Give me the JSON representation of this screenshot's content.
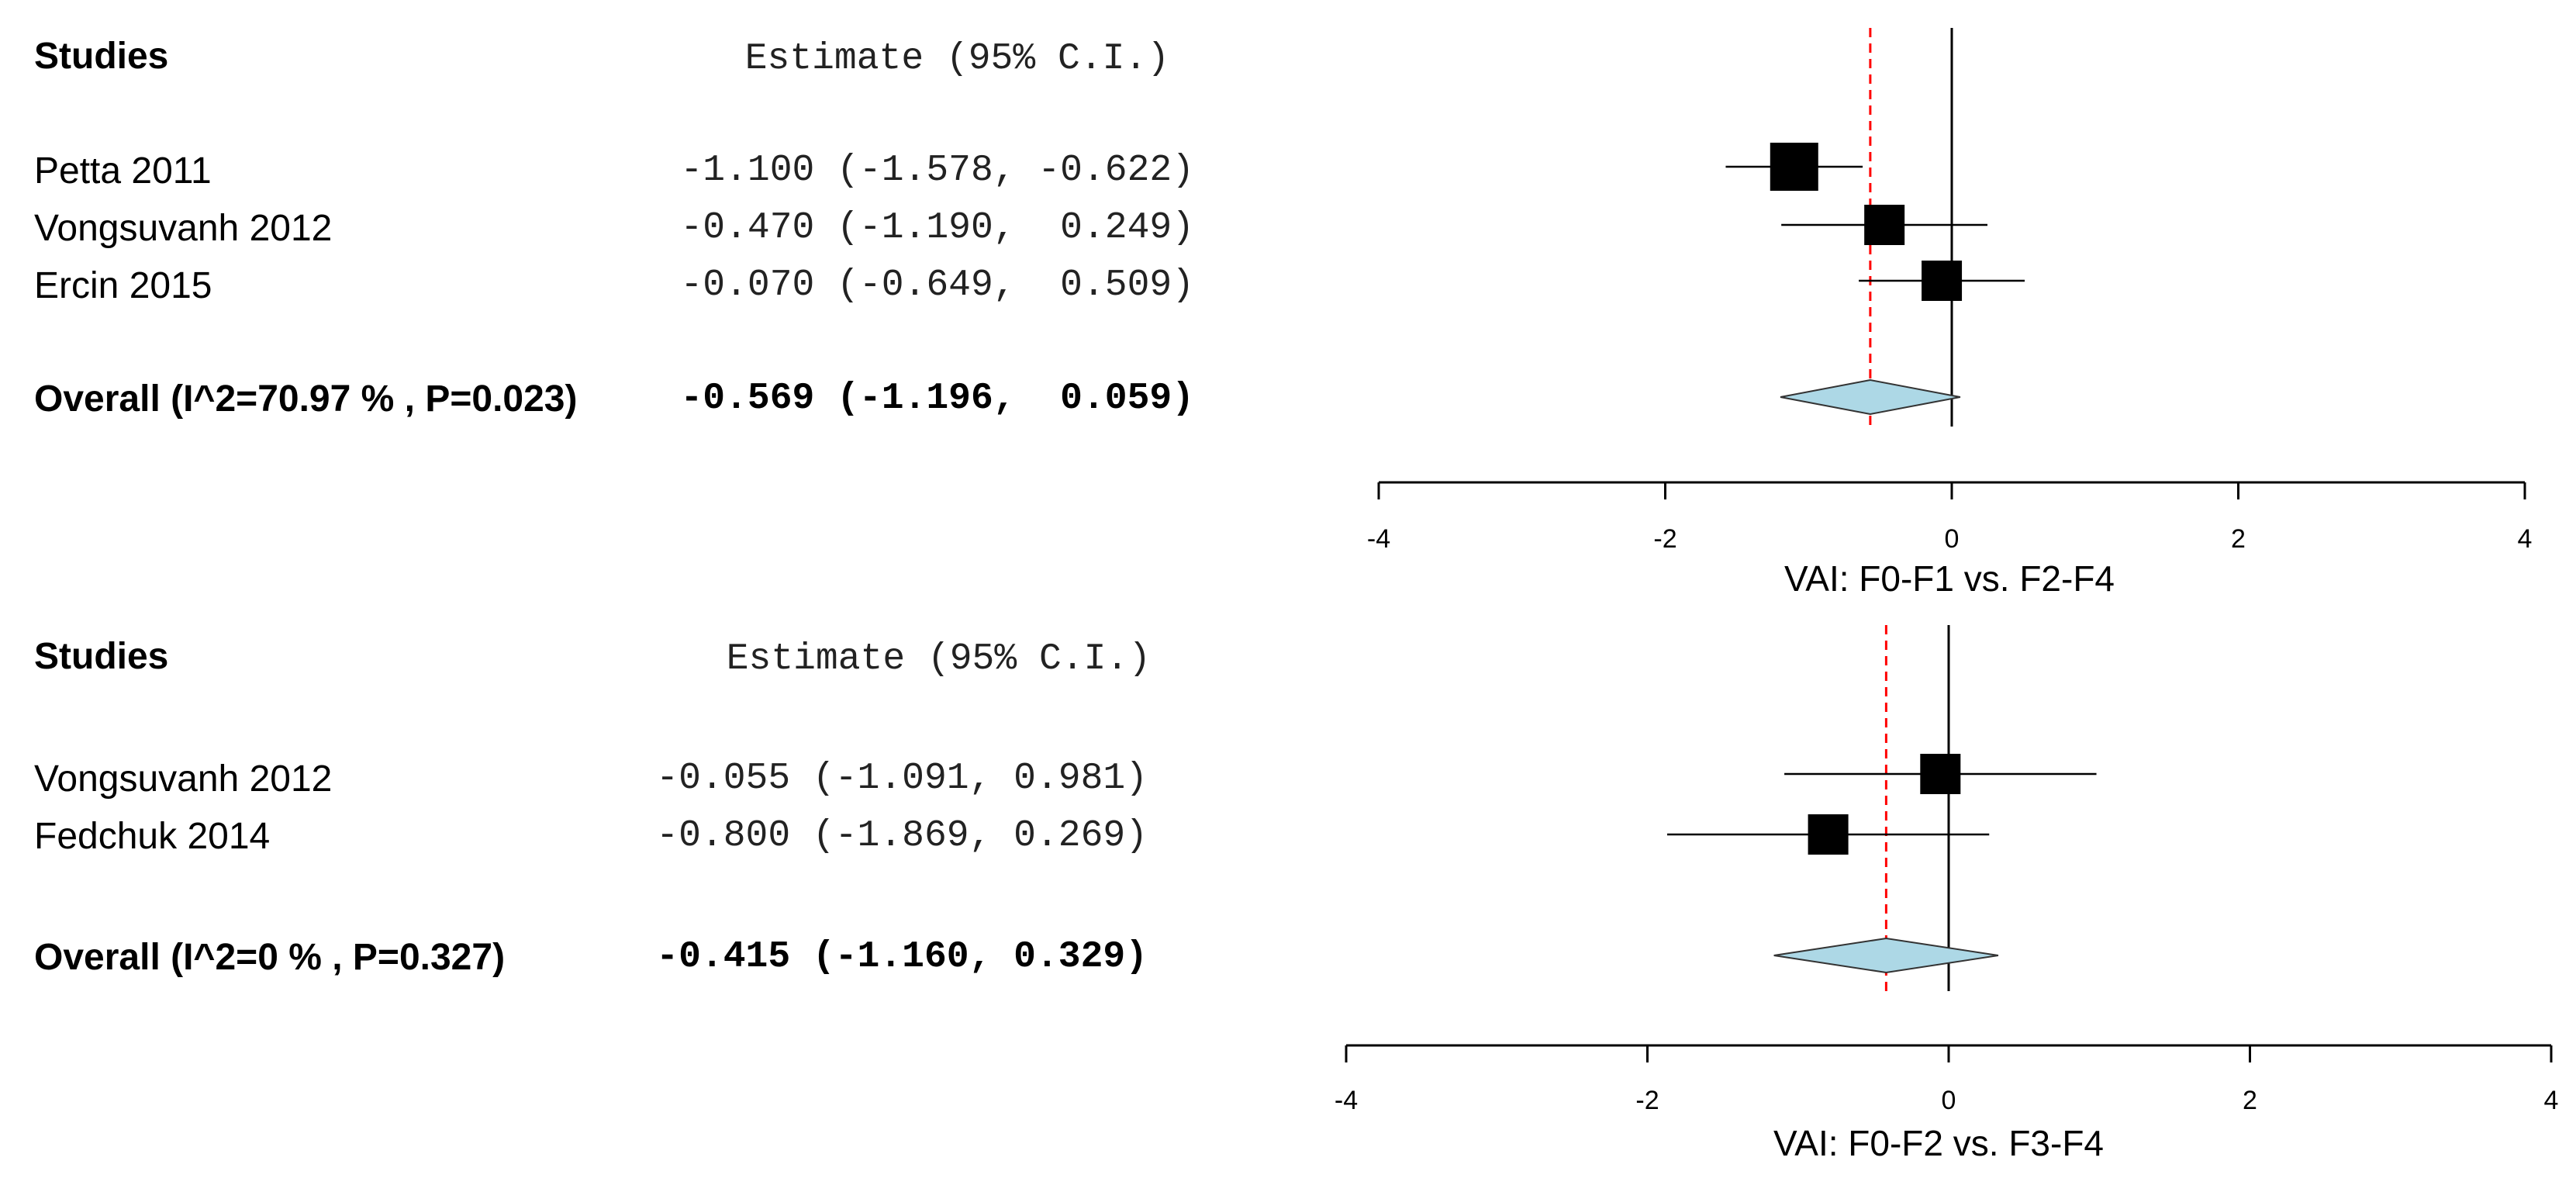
{
  "chart_data": [
    {
      "type": "forest",
      "xlabel": "VAI: F0-F1 vs. F2-F4",
      "xlim": [
        -4,
        4
      ],
      "xticks": [
        -4,
        -2,
        0,
        2,
        4
      ],
      "studies_header": "Studies",
      "estimate_header": "Estimate (95% C.I.)",
      "studies": [
        {
          "name": "Petta 2011",
          "estimate": -1.1,
          "lower": -1.578,
          "upper": -0.622,
          "text": "-1.100 (-1.578, -0.622)"
        },
        {
          "name": "Vongsuvanh 2012",
          "estimate": -0.47,
          "lower": -1.19,
          "upper": 0.249,
          "text": "-0.470 (-1.190,  0.249)"
        },
        {
          "name": "Ercin 2015",
          "estimate": -0.07,
          "lower": -0.649,
          "upper": 0.509,
          "text": "-0.070 (-0.649,  0.509)"
        }
      ],
      "overall": {
        "label": "Overall (I^2=70.97 % , P=0.023)",
        "estimate": -0.569,
        "lower": -1.196,
        "upper": 0.059,
        "text": "-0.569 (-1.196,  0.059)"
      },
      "colors": {
        "diamond": "#add8e6",
        "refline": "#ff0000",
        "marker": "#000000"
      }
    },
    {
      "type": "forest",
      "xlabel": "VAI: F0-F2 vs. F3-F4",
      "xlim": [
        -4,
        4
      ],
      "xticks": [
        -4,
        -2,
        0,
        2,
        4
      ],
      "studies_header": "Studies",
      "estimate_header": "Estimate (95% C.I.)",
      "studies": [
        {
          "name": "Vongsuvanh 2012",
          "estimate": -0.055,
          "lower": -1.091,
          "upper": 0.981,
          "text": "-0.055 (-1.091, 0.981)"
        },
        {
          "name": "Fedchuk 2014",
          "estimate": -0.8,
          "lower": -1.869,
          "upper": 0.269,
          "text": "-0.800 (-1.869, 0.269)"
        }
      ],
      "overall": {
        "label": "Overall (I^2=0 % , P=0.327)",
        "estimate": -0.415,
        "lower": -1.16,
        "upper": 0.329,
        "text": "-0.415 (-1.160, 0.329)"
      },
      "colors": {
        "diamond": "#add8e6",
        "refline": "#ff0000",
        "marker": "#000000"
      }
    }
  ]
}
